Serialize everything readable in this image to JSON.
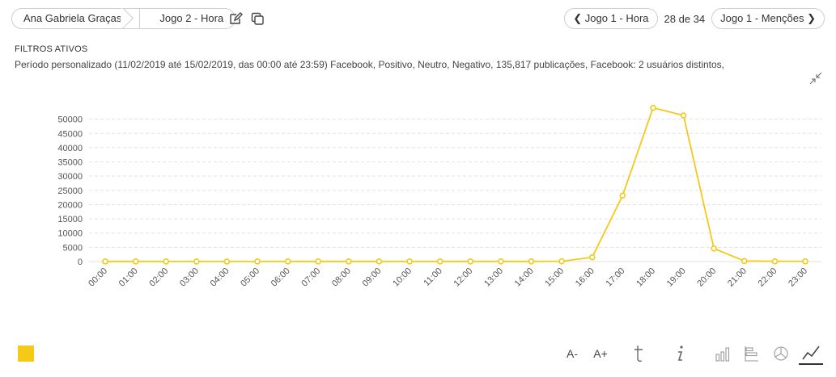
{
  "breadcrumb": {
    "items": [
      "Ana Gabriela Graças",
      "Jogo 2 - Hora"
    ]
  },
  "nav": {
    "prev_label": "Jogo 1 - Hora",
    "counter": "28 de 34",
    "next_label": "Jogo 1 - Menções"
  },
  "filters": {
    "title": "FILTROS ATIVOS",
    "text": "Período personalizado (11/02/2019 até 15/02/2019, das 00:00 até 23:59) Facebook, Positivo, Neutro, Negativo, 135,817 publicações, Facebook: 2 usuários distintos,"
  },
  "toolbar": {
    "font_decrease": "A-",
    "font_increase": "A+"
  },
  "colors": {
    "series": "#f4c918",
    "grid": "#e2e2e2"
  },
  "icons": [
    "edit-icon",
    "copy-icon",
    "collapse-icon",
    "text-icon",
    "info-icon",
    "bar-chart-icon",
    "horizontal-bar-icon",
    "pie-chart-icon",
    "line-chart-icon"
  ],
  "chart_data": {
    "type": "line",
    "categories": [
      "00:00",
      "01:00",
      "02:00",
      "03:00",
      "04:00",
      "05:00",
      "06:00",
      "07:00",
      "08:00",
      "09:00",
      "10:00",
      "11:00",
      "12:00",
      "13:00",
      "14:00",
      "15:00",
      "16:00",
      "17:00",
      "18:00",
      "19:00",
      "20:00",
      "21:00",
      "22:00",
      "23:00"
    ],
    "series": [
      {
        "values": [
          50,
          50,
          40,
          30,
          30,
          40,
          50,
          50,
          50,
          50,
          40,
          50,
          50,
          50,
          60,
          100,
          1500,
          23200,
          54000,
          51300,
          4600,
          200,
          100,
          70
        ]
      }
    ],
    "yticks": [
      0,
      5000,
      10000,
      15000,
      20000,
      25000,
      30000,
      35000,
      40000,
      45000,
      50000
    ],
    "ylim": [
      0,
      55000
    ],
    "grid": true,
    "legend": "bottom-left"
  }
}
